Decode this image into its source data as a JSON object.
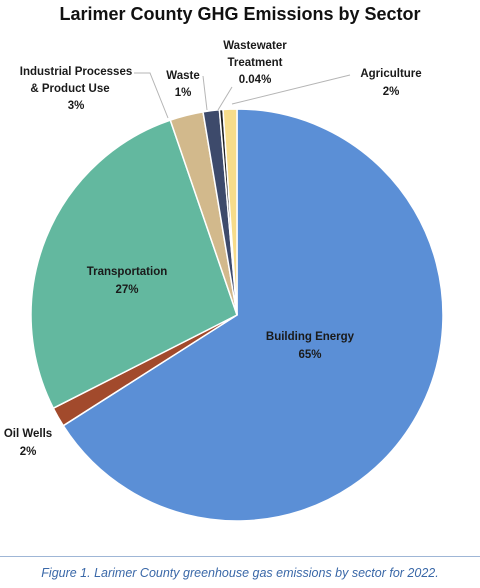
{
  "chart_data": {
    "type": "pie",
    "title": "Larimer County GHG Emissions by Sector",
    "slices": [
      {
        "key": "building",
        "label": "Building Energy",
        "pct_label": "65%",
        "value": 65,
        "color": "#5b8fd6"
      },
      {
        "key": "oil",
        "label": "Oil Wells",
        "pct_label": "2%",
        "value": 2,
        "color": "#a24a2c"
      },
      {
        "key": "transport",
        "label": "Transportation",
        "pct_label": "27%",
        "value": 27,
        "color": "#63b89f"
      },
      {
        "key": "industrial",
        "label": "Industrial Processes & Product Use",
        "pct_label": "3%",
        "value": 3,
        "color": "#d2b98c"
      },
      {
        "key": "waste",
        "label": "Waste",
        "pct_label": "1%",
        "value": 1,
        "color": "#3d4a6b"
      },
      {
        "key": "wastewater",
        "label": "Wastewater Treatment",
        "pct_label": "0.04%",
        "value": 0.04,
        "color": "#222222"
      },
      {
        "key": "agriculture",
        "label": "Agriculture",
        "pct_label": "2%",
        "value": 2,
        "color": "#f7dc8a"
      }
    ]
  },
  "caption": "Figure 1. Larimer County greenhouse gas emissions by sector for 2022."
}
